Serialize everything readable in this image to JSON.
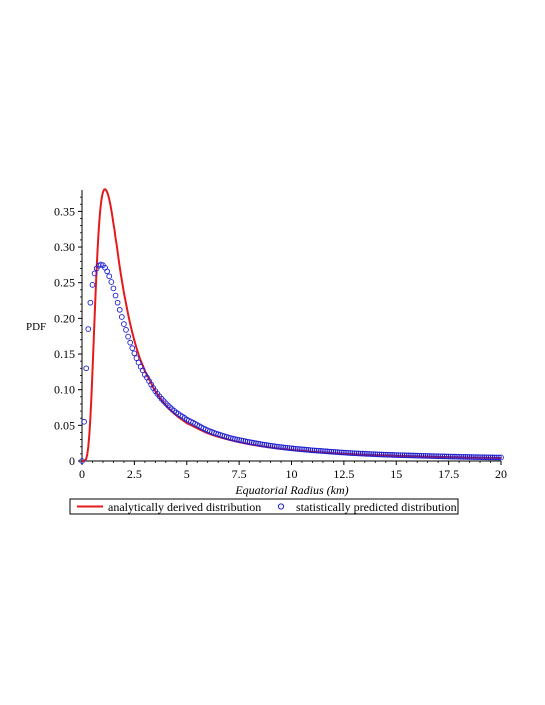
{
  "chart_data": {
    "type": "line",
    "xlabel_prefix": "Equatorial Radius (",
    "xlabel_unit": "km",
    "xlabel_suffix": ")",
    "ylabel": "PDF",
    "xlim": [
      0,
      20
    ],
    "ylim": [
      0,
      0.38
    ],
    "x_ticks": [
      "0",
      "2.5",
      "5",
      "7.5",
      "10",
      "12.5",
      "15",
      "17.5",
      "20"
    ],
    "y_ticks": [
      "0",
      "0.05",
      "0.10",
      "0.15",
      "0.20",
      "0.25",
      "0.30",
      "0.35"
    ],
    "grid": false,
    "legend_position": "bottom",
    "series": [
      {
        "name": "analytically derived distribution",
        "style": "line",
        "color": "#e41a1c",
        "x": [
          0,
          0.1,
          0.2,
          0.3,
          0.4,
          0.5,
          0.6,
          0.7,
          0.8,
          0.9,
          1.0,
          1.1,
          1.2,
          1.3,
          1.4,
          1.5,
          1.6,
          1.8,
          2.0,
          2.25,
          2.5,
          2.75,
          3.0,
          3.5,
          4.0,
          4.5,
          5.0,
          6.0,
          7.0,
          8.0,
          9.0,
          10.0,
          11.0,
          12.5,
          14.0,
          15.0,
          17.5,
          20.0
        ],
        "y": [
          0,
          0.0001,
          0.003,
          0.02,
          0.06,
          0.125,
          0.2,
          0.27,
          0.325,
          0.36,
          0.377,
          0.381,
          0.377,
          0.367,
          0.352,
          0.333,
          0.313,
          0.272,
          0.236,
          0.199,
          0.169,
          0.145,
          0.126,
          0.098,
          0.078,
          0.064,
          0.053,
          0.039,
          0.03,
          0.0235,
          0.0189,
          0.0155,
          0.0129,
          0.0101,
          0.0082,
          0.0072,
          0.0054,
          0.0042
        ]
      },
      {
        "name": "statistically predicted distribution",
        "style": "markers",
        "marker": "circle",
        "color": "#1f1fcf",
        "x": [
          0,
          0.05,
          0.1,
          0.15,
          0.2,
          0.25,
          0.3,
          0.35,
          0.4,
          0.45,
          0.5,
          0.55,
          0.6,
          0.7,
          0.8,
          0.9,
          1.0,
          1.1,
          1.2,
          1.3,
          1.4,
          1.5,
          1.6,
          1.7,
          1.8,
          1.9,
          2.0,
          2.25,
          2.5,
          2.75,
          3.0,
          3.5,
          4.0,
          4.5,
          5.0,
          6.0,
          7.0,
          8.0,
          9.0,
          10.0,
          11.0,
          12.5,
          14.0,
          15.0,
          17.5,
          20.0
        ],
        "y": [
          0,
          0.02,
          0.055,
          0.095,
          0.13,
          0.16,
          0.185,
          0.205,
          0.222,
          0.236,
          0.247,
          0.256,
          0.263,
          0.27,
          0.274,
          0.2755,
          0.2745,
          0.271,
          0.266,
          0.259,
          0.251,
          0.242,
          0.232,
          0.222,
          0.212,
          0.202,
          0.192,
          0.17,
          0.151,
          0.135,
          0.121,
          0.098,
          0.081,
          0.068,
          0.058,
          0.043,
          0.033,
          0.0265,
          0.0215,
          0.0178,
          0.015,
          0.0118,
          0.0095,
          0.0083,
          0.0063,
          0.0049
        ]
      }
    ]
  }
}
